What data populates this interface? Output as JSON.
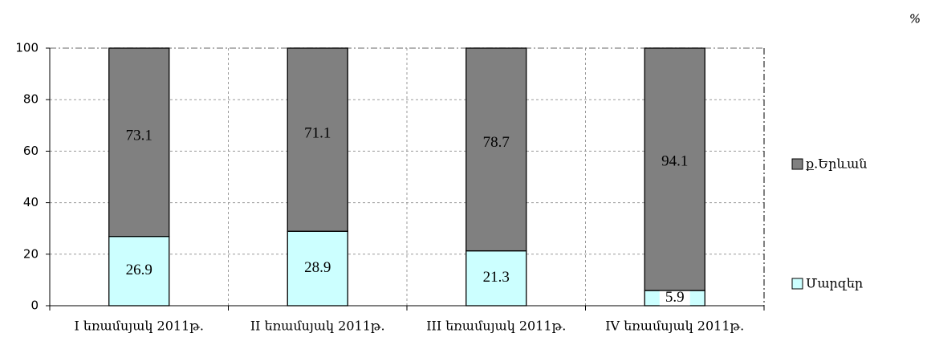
{
  "chart_data": {
    "type": "stacked_bar",
    "unit_label": "%",
    "categories": [
      "I եռամսյակ 2011թ.",
      "II եռամսյակ 2011թ.",
      "III եռամսյակ 2011թ.",
      "IV եռամսյակ 2011թ."
    ],
    "series": [
      {
        "name": "Մարզեր",
        "color": "#ccffff",
        "values": [
          26.9,
          28.9,
          21.3,
          5.9
        ]
      },
      {
        "name": "ք.Երևան",
        "color": "#808080",
        "values": [
          73.1,
          71.1,
          78.7,
          94.1
        ]
      }
    ],
    "ylim": [
      0,
      100
    ],
    "yticks": [
      0,
      20,
      40,
      60,
      80,
      100
    ],
    "grid": true,
    "legend": "right"
  }
}
